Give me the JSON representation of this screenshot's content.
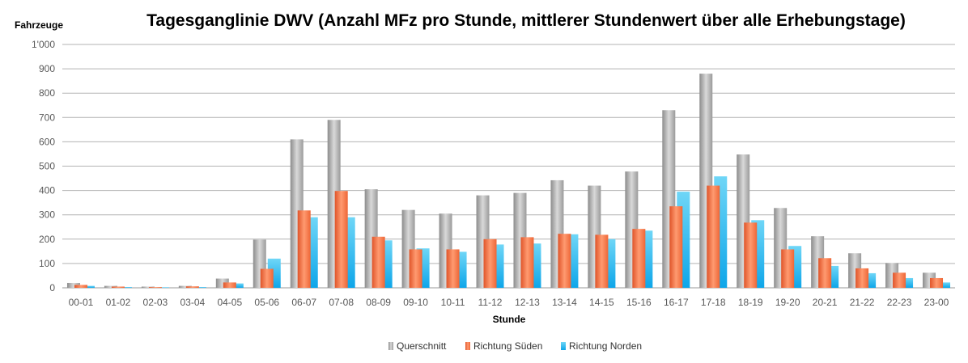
{
  "chart_data": {
    "type": "bar",
    "title": "Tagesganglinie DWV (Anzahl MFz pro Stunde, mittlerer Stundenwert über alle Erhebungstage)",
    "ylabel": "Fahrzeuge",
    "xlabel": "Stunde",
    "ylim": [
      0,
      1000
    ],
    "yticks": [
      0,
      100,
      200,
      300,
      400,
      500,
      600,
      700,
      800,
      900,
      1000
    ],
    "ytick_labels": [
      "0",
      "100",
      "200",
      "300",
      "400",
      "500",
      "600",
      "700",
      "800",
      "900",
      "1'000"
    ],
    "grid": true,
    "legend_position": "bottom",
    "categories": [
      "00-01",
      "01-02",
      "02-03",
      "03-04",
      "04-05",
      "05-06",
      "06-07",
      "07-08",
      "08-09",
      "09-10",
      "10-11",
      "11-12",
      "12-13",
      "13-14",
      "14-15",
      "15-16",
      "16-17",
      "17-18",
      "18-19",
      "19-20",
      "20-21",
      "21-22",
      "22-23",
      "23-00"
    ],
    "series": [
      {
        "name": "Querschnitt",
        "color": "#a6a6a6",
        "values": [
          20,
          8,
          5,
          8,
          38,
          198,
          610,
          690,
          405,
          320,
          305,
          380,
          390,
          442,
          420,
          478,
          730,
          880,
          548,
          328,
          212,
          142,
          102,
          62
        ]
      },
      {
        "name": "Richtung Süden",
        "color": "#f26a3a",
        "values": [
          12,
          5,
          3,
          6,
          22,
          78,
          318,
          398,
          210,
          158,
          158,
          200,
          208,
          222,
          218,
          242,
          335,
          420,
          268,
          158,
          122,
          80,
          62,
          40
        ]
      },
      {
        "name": "Richtung Norden",
        "color": "#1eb4ee",
        "values": [
          8,
          3,
          2,
          3,
          18,
          120,
          290,
          290,
          195,
          162,
          148,
          178,
          182,
          220,
          200,
          235,
          395,
          458,
          278,
          172,
          90,
          60,
          40,
          22
        ]
      }
    ]
  }
}
